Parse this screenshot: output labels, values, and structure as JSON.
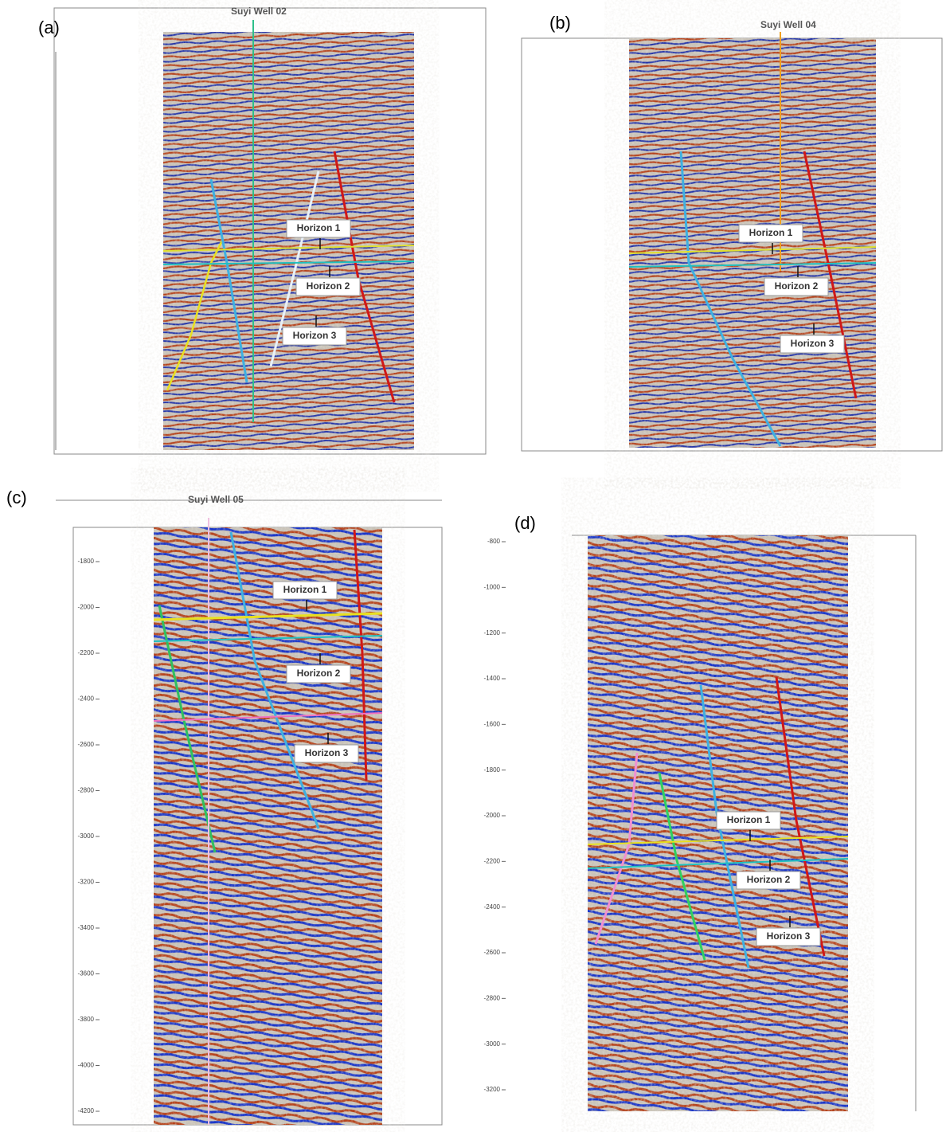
{
  "panels": [
    {
      "label": "(a)",
      "well": "Suyi Well 02",
      "horizons": [
        "Horizon 1",
        "Horizon 2",
        "Horizon 3"
      ]
    },
    {
      "label": "(b)",
      "well": "Suyi Well 04",
      "horizons": [
        "Horizon 1",
        "Horizon 2",
        "Horizon 3"
      ]
    },
    {
      "label": "(c)",
      "well": "Suyi Well 05",
      "horizons": [
        "Horizon 1",
        "Horizon 2",
        "Horizon 3"
      ],
      "depth_ticks": [
        "-1800",
        "-2000",
        "-2200",
        "-2400",
        "-2600",
        "-2800",
        "-3000",
        "-3200",
        "-3400",
        "-3600",
        "-3800",
        "-4000",
        "-4200"
      ]
    },
    {
      "label": "(d)",
      "horizons": [
        "Horizon  1",
        "Horizon  2",
        "Horizon  3"
      ],
      "depth_ticks": [
        "-800",
        "-1000",
        "-1200",
        "-1400",
        "-1600",
        "-1800",
        "-2000",
        "-2200",
        "-2400",
        "-2600",
        "-2800",
        "-3000",
        "-3200"
      ]
    }
  ]
}
